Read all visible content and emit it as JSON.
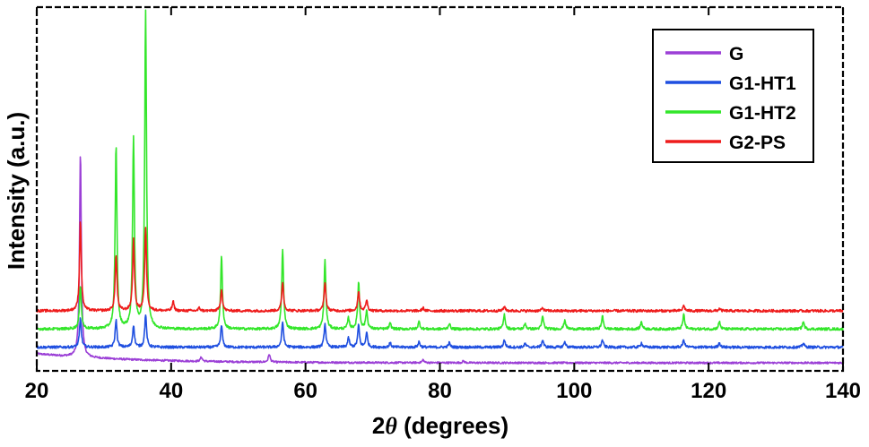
{
  "chart_data": {
    "type": "line",
    "title": "",
    "xlabel": {
      "prefix": "2",
      "symbol": "θ",
      "suffix": " (degrees)"
    },
    "ylabel": "Intensity (a.u.)",
    "xlim": [
      20,
      140
    ],
    "ylim": [
      0,
      100
    ],
    "xticks": [
      20,
      40,
      60,
      80,
      100,
      120,
      140
    ],
    "xtick_labels": [
      "20",
      "40",
      "60",
      "80",
      "100",
      "120",
      "140"
    ],
    "y_ticks_labeled": false,
    "grid": false,
    "legend_position": "top-right",
    "series": [
      {
        "name": "G",
        "color": "#9b3fd6",
        "baseline": 2.2,
        "decay": {
          "amp": 2.5,
          "tau": 14
        },
        "noise": 0.25,
        "peaks": [
          [
            26.5,
            56
          ],
          [
            44.5,
            1.2
          ],
          [
            54.6,
            2.2
          ],
          [
            77.5,
            0.8
          ],
          [
            83.5,
            0.5
          ]
        ]
      },
      {
        "name": "G1-HT1",
        "color": "#1f4fe0",
        "baseline": 6.5,
        "decay": {
          "amp": 0,
          "tau": 1
        },
        "noise": 0.35,
        "peaks": [
          [
            26.5,
            8
          ],
          [
            31.8,
            7.5
          ],
          [
            34.4,
            6
          ],
          [
            36.2,
            9
          ],
          [
            47.5,
            6
          ],
          [
            56.6,
            7
          ],
          [
            62.9,
            6.5
          ],
          [
            66.4,
            2.5
          ],
          [
            67.9,
            6
          ],
          [
            69.1,
            4
          ],
          [
            72.6,
            1.2
          ],
          [
            76.9,
            1.5
          ],
          [
            81.4,
            1.2
          ],
          [
            89.6,
            2
          ],
          [
            92.7,
            1
          ],
          [
            95.3,
            2
          ],
          [
            98.6,
            1.5
          ],
          [
            104.2,
            2
          ],
          [
            110.0,
            1.2
          ],
          [
            116.3,
            2
          ],
          [
            121.6,
            1.2
          ],
          [
            134.1,
            1.2
          ]
        ]
      },
      {
        "name": "G1-HT2",
        "color": "#33e62a",
        "baseline": 11.5,
        "decay": {
          "amp": 0,
          "tau": 1
        },
        "noise": 0.35,
        "peaks": [
          [
            26.5,
            12
          ],
          [
            31.8,
            50.5
          ],
          [
            34.4,
            52.5
          ],
          [
            36.2,
            87.5
          ],
          [
            47.5,
            20
          ],
          [
            56.6,
            22
          ],
          [
            62.9,
            19
          ],
          [
            66.4,
            3
          ],
          [
            67.9,
            13
          ],
          [
            69.1,
            5
          ],
          [
            72.6,
            1.5
          ],
          [
            76.9,
            2
          ],
          [
            81.4,
            1.5
          ],
          [
            89.6,
            4
          ],
          [
            92.7,
            1.5
          ],
          [
            95.3,
            3.5
          ],
          [
            98.6,
            2.5
          ],
          [
            104.2,
            3.5
          ],
          [
            110.0,
            2
          ],
          [
            116.3,
            4
          ],
          [
            121.6,
            2
          ],
          [
            134.1,
            2
          ]
        ]
      },
      {
        "name": "G2-PS",
        "color": "#ee1c1c",
        "baseline": 16.5,
        "decay": {
          "amp": 0,
          "tau": 1
        },
        "noise": 0.35,
        "peaks": [
          [
            26.5,
            24.5
          ],
          [
            31.8,
            15.5
          ],
          [
            34.4,
            19.5
          ],
          [
            36.2,
            23
          ],
          [
            40.3,
            2.5
          ],
          [
            44.2,
            0.8
          ],
          [
            47.5,
            6
          ],
          [
            56.6,
            8
          ],
          [
            62.9,
            8
          ],
          [
            67.9,
            5.5
          ],
          [
            69.1,
            3
          ],
          [
            77.5,
            0.8
          ],
          [
            89.6,
            1.2
          ],
          [
            95.3,
            0.8
          ],
          [
            116.3,
            1.5
          ],
          [
            121.6,
            0.6
          ]
        ]
      }
    ]
  }
}
